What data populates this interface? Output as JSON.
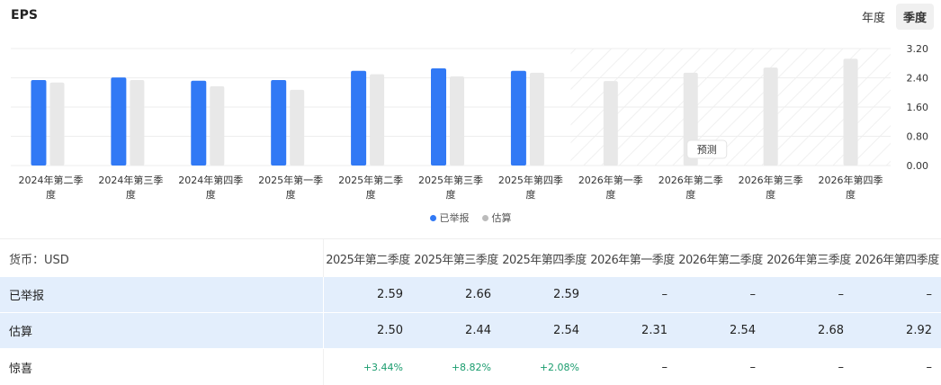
{
  "title": "EPS",
  "toggle": {
    "annual": "年度",
    "quarterly": "季度",
    "active": "quarterly"
  },
  "forecast_label": "预测",
  "colors": {
    "reported": "#3179f5",
    "estimate": "#e8e8e8",
    "surprise": "#1a9c6e",
    "row_highlight": "#e3eefc"
  },
  "chart_data": {
    "type": "bar",
    "categories": [
      "2024年第二季度",
      "2024年第三季度",
      "2024年第四季度",
      "2025年第一季度",
      "2025年第二季度",
      "2025年第三季度",
      "2025年第四季度",
      "2026年第一季度",
      "2026年第二季度",
      "2026年第三季度",
      "2026年第四季度"
    ],
    "series": [
      {
        "name": "已举报",
        "values": [
          2.34,
          2.41,
          2.32,
          2.34,
          2.59,
          2.66,
          2.59,
          null,
          null,
          null,
          null
        ]
      },
      {
        "name": "估算",
        "values": [
          2.27,
          2.34,
          2.17,
          2.07,
          2.5,
          2.44,
          2.54,
          2.31,
          2.54,
          2.68,
          2.92
        ]
      }
    ],
    "yticks": [
      "0.00",
      "0.80",
      "1.60",
      "2.40",
      "3.20"
    ],
    "ylim": [
      0,
      3.2
    ],
    "forecast_from": "2026年第一季度",
    "legend": "bottom",
    "grid": true
  },
  "table": {
    "currency_label": "货币：USD",
    "columns": [
      "2025年第二季度",
      "2025年第三季度",
      "2025年第四季度",
      "2026年第一季度",
      "2026年第二季度",
      "2026年第三季度",
      "2026年第四季度"
    ],
    "rows": [
      {
        "label": "已举报",
        "values": [
          "2.59",
          "2.66",
          "2.59",
          "–",
          "–",
          "–",
          "–"
        ]
      },
      {
        "label": "估算",
        "values": [
          "2.50",
          "2.44",
          "2.54",
          "2.31",
          "2.54",
          "2.68",
          "2.92"
        ]
      },
      {
        "label": "惊喜",
        "values": [
          "+3.44%",
          "+8.82%",
          "+2.08%",
          "–",
          "–",
          "–",
          "–"
        ]
      }
    ]
  }
}
